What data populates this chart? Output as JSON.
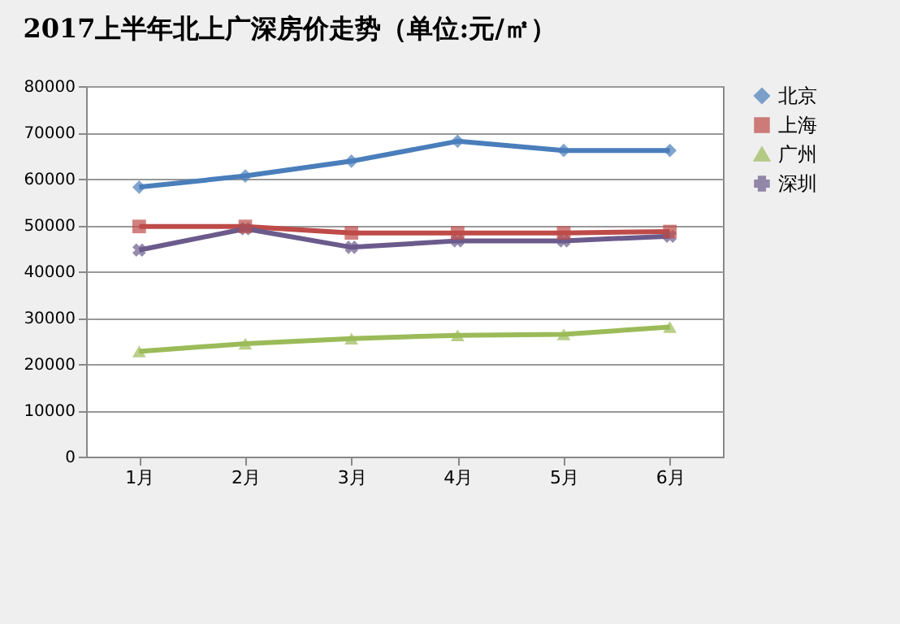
{
  "chart_data": {
    "type": "line",
    "title": "2017上半年北上广深房价走势（单位:元/㎡）",
    "categories": [
      "1月",
      "2月",
      "3月",
      "4月",
      "5月",
      "6月"
    ],
    "ylim": [
      0,
      80000
    ],
    "yticks": [
      0,
      10000,
      20000,
      30000,
      40000,
      50000,
      60000,
      70000,
      80000
    ],
    "grid": "y",
    "legend": "right",
    "series": [
      {
        "name": "北京",
        "color": "#4a7ebb",
        "marker": "diamond",
        "values": [
          58200,
          60600,
          63800,
          68100,
          66100,
          66100
        ]
      },
      {
        "name": "上海",
        "color": "#be4b48",
        "marker": "square",
        "values": [
          49700,
          49700,
          48300,
          48300,
          48300,
          48600
        ]
      },
      {
        "name": "广州",
        "color": "#9bbb59",
        "marker": "triangle",
        "values": [
          22700,
          24400,
          25500,
          26200,
          26400,
          28000
        ]
      },
      {
        "name": "深圳",
        "color": "#6b5b8c",
        "marker": "cross",
        "values": [
          44600,
          49200,
          45200,
          46600,
          46600,
          47600
        ]
      }
    ]
  }
}
